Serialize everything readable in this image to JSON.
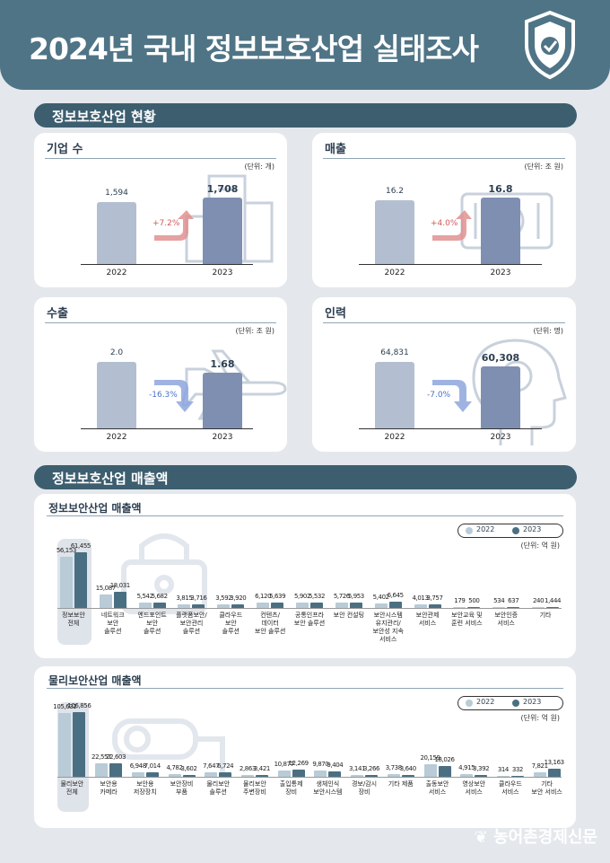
{
  "header": {
    "title": "2024년 국내 정보보호산업 실태조사"
  },
  "section1": {
    "title": "정보보호산업 현황"
  },
  "kpi": [
    {
      "title": "기업 수",
      "unit": "(단위: 개)",
      "labels": [
        "1,594",
        "1,708"
      ],
      "years": [
        "2022",
        "2023"
      ],
      "change": "+7.2%",
      "direction": "up"
    },
    {
      "title": "매출",
      "unit": "(단위: 조 원)",
      "labels": [
        "16.2",
        "16.8"
      ],
      "years": [
        "2022",
        "2023"
      ],
      "change": "+4.0%",
      "direction": "up"
    },
    {
      "title": "수출",
      "unit": "(단위: 조 원)",
      "labels": [
        "2.0",
        "1.68"
      ],
      "years": [
        "2022",
        "2023"
      ],
      "change": "-16.3%",
      "direction": "down"
    },
    {
      "title": "인력",
      "unit": "(단위: 명)",
      "labels": [
        "64,831",
        "60,308"
      ],
      "years": [
        "2022",
        "2023"
      ],
      "change": "-7.0%",
      "direction": "down"
    }
  ],
  "section2": {
    "title": "정보보호산업 매출액"
  },
  "info": {
    "title": "정보보안산업 매출액",
    "unit": "(단위: 억 원)",
    "legend": [
      "2022",
      "2023"
    ]
  },
  "phys": {
    "title": "물리보안산업 매출액",
    "unit": "(단위: 억 원)",
    "legend": [
      "2022",
      "2023"
    ]
  },
  "footer": {
    "text": "농어촌경제신문"
  },
  "colors": {
    "header": "#4f7486",
    "section": "#3d5e6f",
    "series_2022": "#b8cbd6",
    "series_2023": "#4b6f82",
    "up": "#e29191",
    "down": "#8ea6de"
  },
  "chart_data": [
    {
      "type": "bar",
      "title": "기업 수",
      "categories": [
        "2022",
        "2023"
      ],
      "values": [
        1594,
        1708
      ]
    },
    {
      "type": "bar",
      "title": "매출",
      "categories": [
        "2022",
        "2023"
      ],
      "values": [
        16.2,
        16.8
      ]
    },
    {
      "type": "bar",
      "title": "수출",
      "categories": [
        "2022",
        "2023"
      ],
      "values": [
        2.0,
        1.68
      ]
    },
    {
      "type": "bar",
      "title": "인력",
      "categories": [
        "2022",
        "2023"
      ],
      "values": [
        64831,
        60308
      ]
    },
    {
      "type": "bar",
      "title": "정보보안산업 매출액",
      "categories": [
        "정보보안\n전체",
        "네트워크\n보안\n솔루션",
        "엔드포인트\n보안\n솔루션",
        "플랫폼보안/\n보안관리\n솔루션",
        "클라우드\n보안\n솔루션",
        "컨텐츠/\n데이터\n보안 솔루션",
        "공통인프라\n보안 솔루션",
        "보안 컨설팅",
        "보안시스템\n유지관리/\n보안성 지속\n서비스",
        "보안관제\n서비스",
        "보안교육 및\n훈련 서비스",
        "보안인증\n서비스",
        "기타"
      ],
      "series": [
        {
          "name": "2022",
          "values": [
            56153,
            15087,
            5542,
            3815,
            3592,
            6120,
            5902,
            5726,
            5402,
            4013,
            179,
            534,
            240
          ],
          "labels": [
            "56,153",
            "15,087",
            "5,542",
            "3,815",
            "3,592",
            "6,120",
            "5,902",
            "5,726",
            "5,402",
            "4,013",
            "179",
            "534",
            "240"
          ]
        },
        {
          "name": "2023",
          "values": [
            61455,
            18031,
            5682,
            3716,
            3920,
            5639,
            5532,
            5953,
            6645,
            3757,
            500,
            637,
            1444
          ],
          "labels": [
            "61,455",
            "18,031",
            "5,682",
            "3,716",
            "3,920",
            "5,639",
            "5,532",
            "5,953",
            "6,645",
            "3,757",
            "500",
            "637",
            "1,444"
          ]
        }
      ]
    },
    {
      "type": "bar",
      "title": "물리보안산업 매출액",
      "categories": [
        "물리보안\n전체",
        "보안용\n카메라",
        "보안용\n저장장치",
        "보안장비\n부품",
        "물리보안\n솔루션",
        "물리보안\n주변장비",
        "출입통제\n장비",
        "생체인식\n보안시스템",
        "경보/감시\n장비",
        "기타 제품",
        "출동보안\n서비스",
        "영상보안\n서비스",
        "클라우드\n서비스",
        "기타\n보안 서비스"
      ],
      "series": [
        {
          "name": "2022",
          "values": [
            105632,
            22557,
            6948,
            4782,
            7647,
            2863,
            10877,
            9870,
            3141,
            3738,
            20159,
            4915,
            314,
            7821
          ],
          "labels": [
            "105,632",
            "22,557",
            "6,948",
            "4,782",
            "7,647",
            "2,863",
            "10,877",
            "9,870",
            "3,141",
            "3,738",
            "20,159",
            "4,915",
            "314",
            "7,821"
          ]
        },
        {
          "name": "2023",
          "values": [
            106856,
            22603,
            7014,
            3602,
            6724,
            3421,
            12269,
            9404,
            3266,
            3640,
            18026,
            3392,
            332,
            13163
          ],
          "labels": [
            "106,856",
            "22,603",
            "7,014",
            "3,602",
            "6,724",
            "3,421",
            "12,269",
            "9,404",
            "3,266",
            "3,640",
            "18,026",
            "3,392",
            "332",
            "13,163"
          ]
        }
      ]
    }
  ]
}
